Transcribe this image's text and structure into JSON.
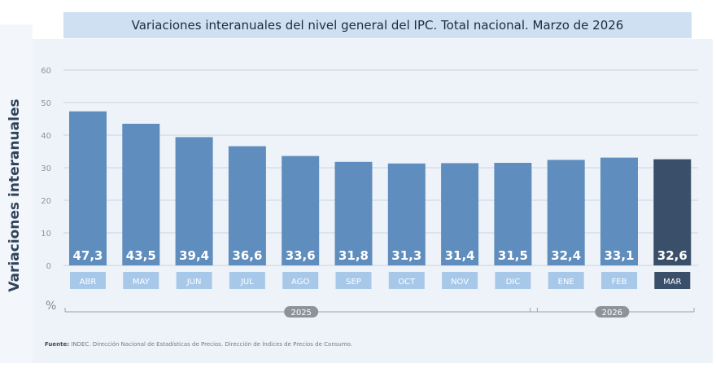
{
  "title": "Variaciones interanuales del nivel general del IPC. Total nacional. Marzo de 2026",
  "chart_data": {
    "type": "bar",
    "categories": [
      "ABR",
      "MAY",
      "JUN",
      "JUL",
      "AGO",
      "SEP",
      "OCT",
      "NOV",
      "DIC",
      "ENE",
      "FEB",
      "MAR"
    ],
    "values": [
      47.3,
      43.5,
      39.4,
      36.6,
      33.6,
      31.8,
      31.3,
      31.4,
      31.5,
      32.4,
      33.1,
      32.6
    ],
    "value_labels": [
      "47,3",
      "43,5",
      "39,4",
      "36,6",
      "33,6",
      "31,8",
      "31,3",
      "31,4",
      "31,5",
      "32,4",
      "33,1",
      "32,6"
    ],
    "ylabel": "Variaciones interanuales",
    "unit": "%",
    "ylim": [
      0,
      60
    ],
    "yticks": [
      "0",
      "10",
      "20",
      "30",
      "40",
      "50",
      "60"
    ],
    "grid": true,
    "highlight_index": 11,
    "groups": [
      {
        "label": "2025",
        "from_index": 0,
        "to_index": 8
      },
      {
        "label": "2026",
        "from_index": 9,
        "to_index": 11
      }
    ],
    "colors": {
      "bar": "#5f8dbd",
      "highlight": "#3a4f6a",
      "tick_box": "#a8c8ea",
      "highlight_box": "#3a4f6a",
      "grid": "#c9d3de",
      "group_pill": "#8e9399"
    }
  },
  "source": {
    "label": "Fuente:",
    "text": "INDEC. Dirección Nacional de Estadísticas de Precios. Dirección de Índices de Precios de Consumo."
  }
}
